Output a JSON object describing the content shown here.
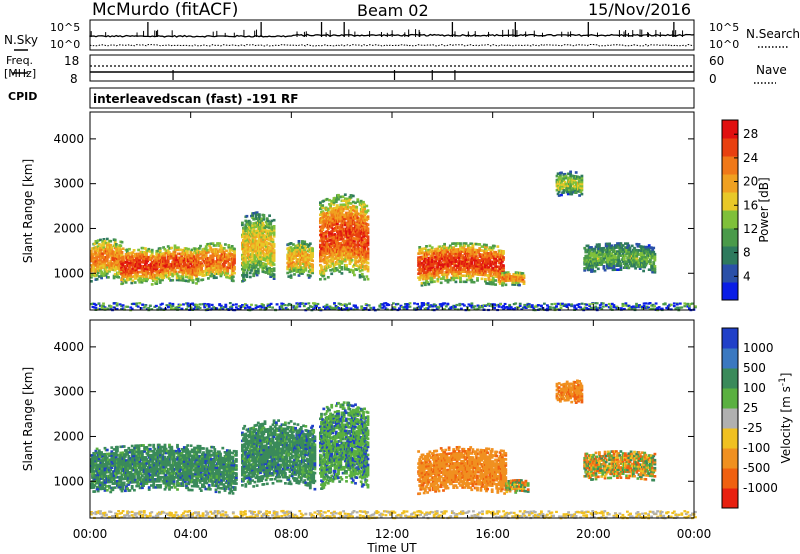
{
  "header": {
    "station": "McMurdo (fitACF)",
    "beam": "Beam 02",
    "date": "15/Nov/2016"
  },
  "noise_panel": {
    "left_label": "N.Sky",
    "right_label": "N.Search",
    "left_ticks": [
      "10^5",
      "10^0"
    ],
    "right_ticks": [
      "10^5",
      "10^0"
    ]
  },
  "freq_panel": {
    "left_label_1": "Freq.",
    "left_label_2": "[MHz]",
    "left_ticks": [
      "18",
      "8"
    ],
    "right_label": "Nave",
    "right_ticks": [
      "60",
      "0"
    ]
  },
  "cpid": {
    "label": "CPID",
    "program": "interleavedscan (fast) -191 RF"
  },
  "chart_data": [
    {
      "type": "heatmap",
      "panel": "power",
      "ylabel": "Slant Range [km]",
      "xlabel": "Time UT",
      "x_ticks": [
        "00:00",
        "04:00",
        "08:00",
        "12:00",
        "16:00",
        "20:00",
        "00:00"
      ],
      "x_range_hours": [
        0,
        24
      ],
      "y_ticks": [
        1000,
        2000,
        3000,
        4000
      ],
      "ylim": [
        180,
        4600
      ],
      "colorbar_label": "Power [dB]",
      "colorbar_ticks": [
        4,
        8,
        12,
        16,
        20,
        24,
        28
      ],
      "colorbar_colors": [
        "#0a1ee6",
        "#2a50a8",
        "#2e7a5e",
        "#4a9a4a",
        "#7fc03a",
        "#e8c828",
        "#f0a020",
        "#f07818",
        "#e84010",
        "#e01010"
      ],
      "clusters": [
        {
          "t0": 0.0,
          "t1": 1.3,
          "r0": 800,
          "r1": 1700,
          "level": 0.7
        },
        {
          "t0": 1.2,
          "t1": 2.6,
          "r0": 700,
          "r1": 1500,
          "level": 0.85
        },
        {
          "t0": 2.6,
          "t1": 4.2,
          "r0": 750,
          "r1": 1550,
          "level": 0.8
        },
        {
          "t0": 4.2,
          "t1": 5.7,
          "r0": 800,
          "r1": 1600,
          "level": 0.75
        },
        {
          "t0": 6.0,
          "t1": 7.3,
          "r0": 800,
          "r1": 2200,
          "level": 0.55
        },
        {
          "t0": 7.8,
          "t1": 8.8,
          "r0": 850,
          "r1": 1650,
          "level": 0.6
        },
        {
          "t0": 9.1,
          "t1": 11.0,
          "r0": 800,
          "r1": 2600,
          "level": 0.8
        },
        {
          "t0": 13.0,
          "t1": 16.4,
          "r0": 700,
          "r1": 1600,
          "level": 0.85
        },
        {
          "t0": 16.2,
          "t1": 17.2,
          "r0": 700,
          "r1": 1000,
          "level": 0.7
        },
        {
          "t0": 18.5,
          "t1": 19.5,
          "r0": 2700,
          "r1": 3200,
          "level": 0.45
        },
        {
          "t0": 19.6,
          "t1": 22.4,
          "r0": 1000,
          "r1": 1600,
          "level": 0.35
        }
      ]
    },
    {
      "type": "heatmap",
      "panel": "velocity",
      "ylabel": "Slant Range [km]",
      "xlabel": "Time UT",
      "x_ticks": [
        "00:00",
        "04:00",
        "08:00",
        "12:00",
        "16:00",
        "20:00",
        "00:00"
      ],
      "x_range_hours": [
        0,
        24
      ],
      "y_ticks": [
        1000,
        2000,
        3000,
        4000
      ],
      "ylim": [
        180,
        4600
      ],
      "colorbar_label": "Velocity [m s^-1]",
      "colorbar_ticks": [
        "1000",
        "500",
        "100",
        "25",
        "-25",
        "-100",
        "-500",
        "-1000"
      ],
      "colorbar_colors": [
        "#2040c8",
        "#3a78c0",
        "#3a8a5a",
        "#5ab040",
        "#b0b0b0",
        "#f0c020",
        "#f09020",
        "#f06010",
        "#e82010"
      ],
      "clusters": [
        {
          "t0": 0.0,
          "t1": 5.8,
          "r0": 700,
          "r1": 1700,
          "class": "green"
        },
        {
          "t0": 6.0,
          "t1": 8.9,
          "r0": 800,
          "r1": 2200,
          "class": "green"
        },
        {
          "t0": 9.1,
          "t1": 11.0,
          "r0": 800,
          "r1": 2600,
          "class": "green-light"
        },
        {
          "t0": 13.0,
          "t1": 16.5,
          "r0": 700,
          "r1": 1650,
          "class": "orange"
        },
        {
          "t0": 16.5,
          "t1": 17.4,
          "r0": 700,
          "r1": 1000,
          "class": "mixed"
        },
        {
          "t0": 18.5,
          "t1": 19.5,
          "r0": 2700,
          "r1": 3200,
          "class": "orange"
        },
        {
          "t0": 19.6,
          "t1": 22.4,
          "r0": 1000,
          "r1": 1600,
          "class": "mixed"
        }
      ]
    }
  ]
}
